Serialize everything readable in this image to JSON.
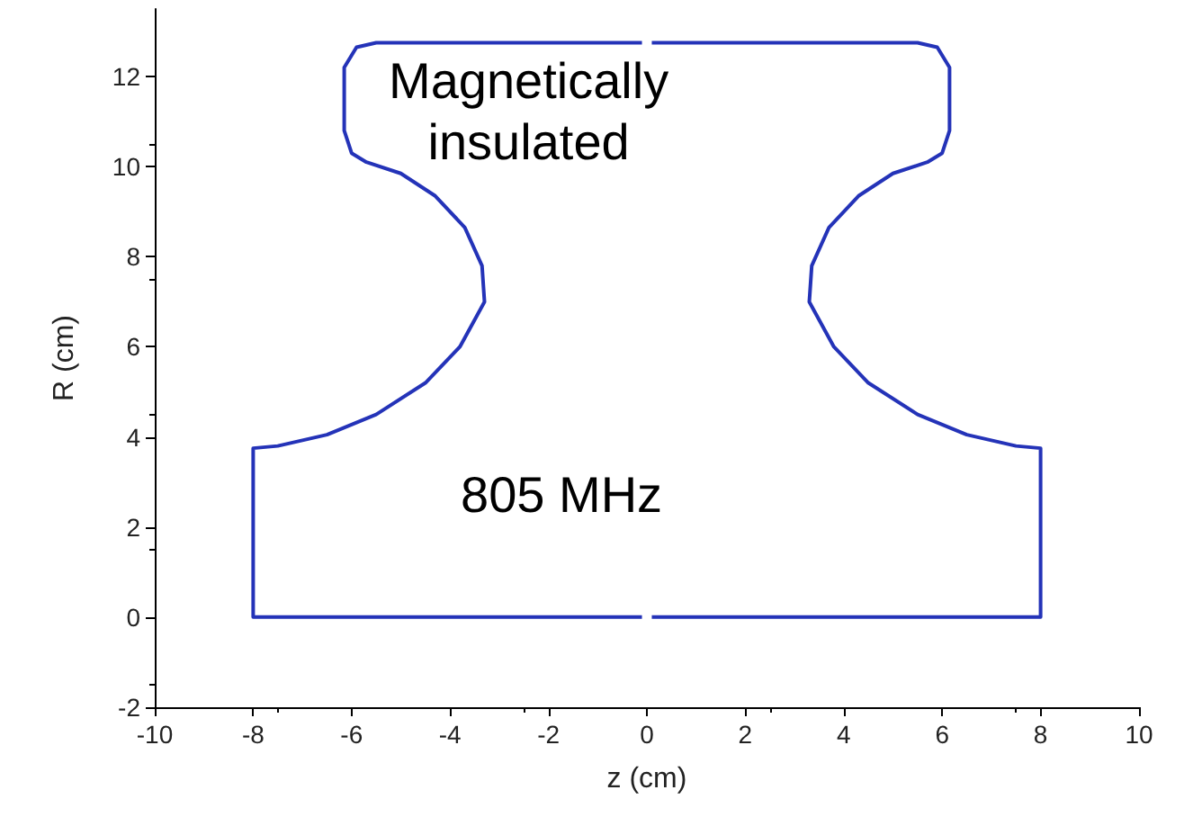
{
  "chart_data": {
    "type": "line",
    "xlabel": "z (cm)",
    "ylabel": "R (cm)",
    "xlim": [
      -10,
      10
    ],
    "ylim": [
      -2,
      13.5
    ],
    "xticks": [
      -10,
      -8,
      -6,
      -4,
      -2,
      0,
      2,
      4,
      6,
      8,
      10
    ],
    "yticks": [
      -2,
      0,
      2,
      4,
      6,
      8,
      10,
      12
    ],
    "grid": false,
    "marker": "none",
    "line_style": "solid",
    "annotations": [
      "Magnetically insulated",
      "805 MHz"
    ],
    "series": [
      {
        "color": "#2433b8",
        "x": [
          -0.1,
          -8,
          -8,
          -7.5,
          -6.5,
          -5.5,
          -4.5,
          -3.8,
          -3.3,
          -3.35,
          -3.7,
          -4.3,
          -5.0,
          -5.7,
          -6.0,
          -6.15,
          -6.15,
          -5.9,
          -5.5,
          -0.1
        ],
        "values": [
          0,
          0,
          3.75,
          3.8,
          4.05,
          4.5,
          5.2,
          6.0,
          7.0,
          7.8,
          8.65,
          9.35,
          9.85,
          10.1,
          10.3,
          10.8,
          12.2,
          12.65,
          12.75,
          12.75
        ]
      },
      {
        "color": "#2433b8",
        "x": [
          0.1,
          8,
          8,
          7.5,
          6.5,
          5.5,
          4.5,
          3.8,
          3.3,
          3.35,
          3.7,
          4.3,
          5.0,
          5.7,
          6.0,
          6.15,
          6.15,
          5.9,
          5.5,
          0.1
        ],
        "values": [
          0,
          0,
          3.75,
          3.8,
          4.05,
          4.5,
          5.2,
          6.0,
          7.0,
          7.8,
          8.65,
          9.35,
          9.85,
          10.1,
          10.3,
          10.8,
          12.2,
          12.65,
          12.75,
          12.75
        ]
      }
    ]
  }
}
